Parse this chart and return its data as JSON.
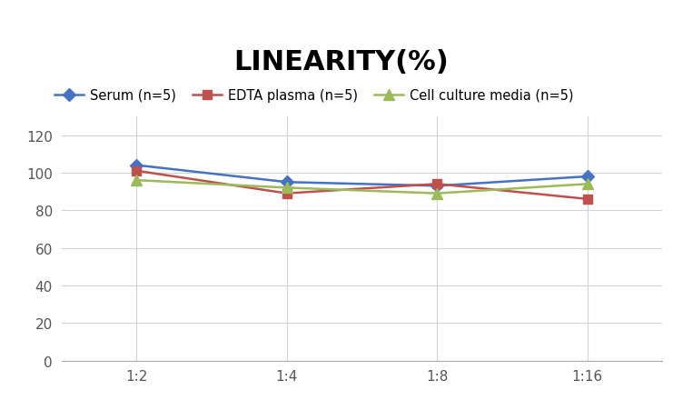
{
  "title": "LINEARITY(%)",
  "x_labels": [
    "1:2",
    "1:4",
    "1:8",
    "1:16"
  ],
  "x_positions": [
    0,
    1,
    2,
    3
  ],
  "series": [
    {
      "label": "Serum (n=5)",
      "values": [
        104,
        95,
        93,
        98
      ],
      "color": "#4472C4",
      "marker": "D",
      "marker_size": 7,
      "linewidth": 1.8
    },
    {
      "label": "EDTA plasma (n=5)",
      "values": [
        101,
        89,
        94,
        86
      ],
      "color": "#C0504D",
      "marker": "s",
      "marker_size": 7,
      "linewidth": 1.8
    },
    {
      "label": "Cell culture media (n=5)",
      "values": [
        96,
        92,
        89,
        94
      ],
      "color": "#9BBB59",
      "marker": "^",
      "marker_size": 8,
      "linewidth": 1.8
    }
  ],
  "ylim": [
    0,
    130
  ],
  "yticks": [
    0,
    20,
    40,
    60,
    80,
    100,
    120
  ],
  "title_fontsize": 22,
  "title_fontweight": "bold",
  "legend_fontsize": 10.5,
  "tick_fontsize": 11,
  "background_color": "#ffffff",
  "grid_color": "#d3d3d3",
  "grid_linewidth": 0.8
}
